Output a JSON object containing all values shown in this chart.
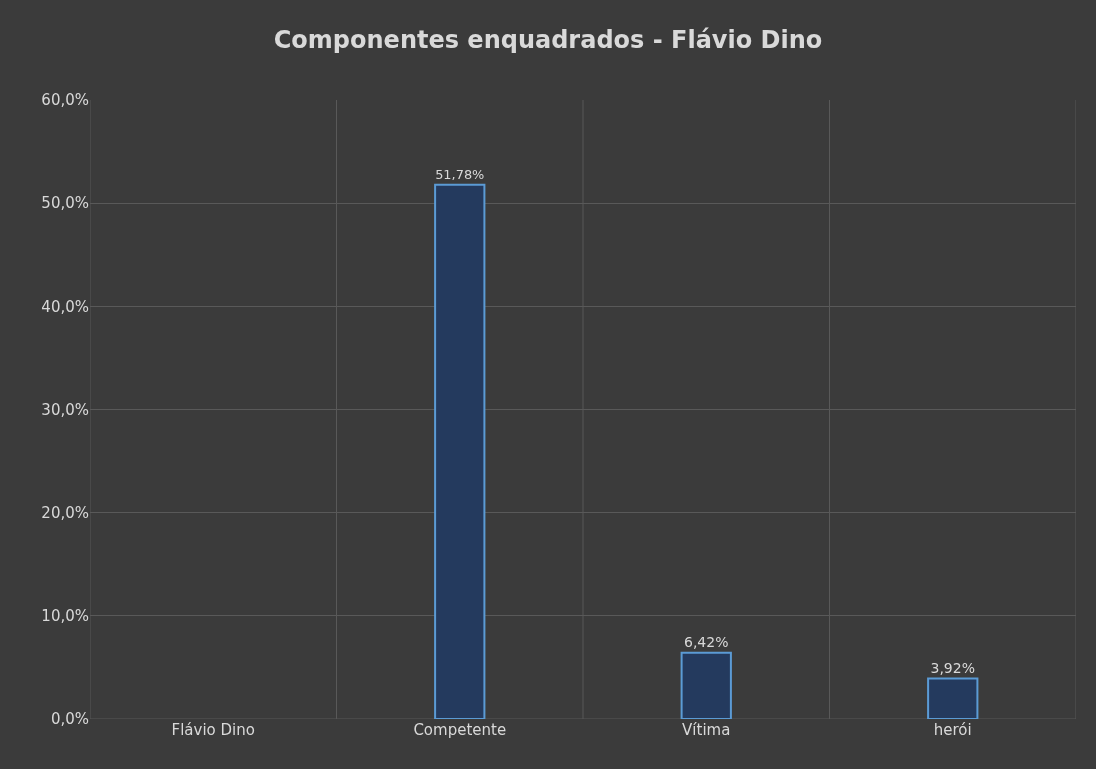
{
  "chart_data": {
    "type": "bar",
    "title": "Componentes enquadrados - Flávio Dino",
    "categories": [
      "Flávio Dino",
      "Competente",
      "Vítima",
      "herói"
    ],
    "values": [
      null,
      51.78,
      6.42,
      3.92
    ],
    "value_labels": [
      null,
      "51,78%",
      "6,42%",
      "3,92%"
    ],
    "color": "#243a5e",
    "ylim": [
      0,
      60
    ],
    "yticks": [
      {
        "value": 0,
        "label": "0,0%"
      },
      {
        "value": 10,
        "label": "10,0%"
      },
      {
        "value": 20,
        "label": "20,0%"
      },
      {
        "value": 30,
        "label": "30,0%"
      },
      {
        "value": 40,
        "label": "40,0%"
      },
      {
        "value": 50,
        "label": "50,0%"
      },
      {
        "value": 60,
        "label": "60,0%"
      }
    ],
    "grid": true
  }
}
